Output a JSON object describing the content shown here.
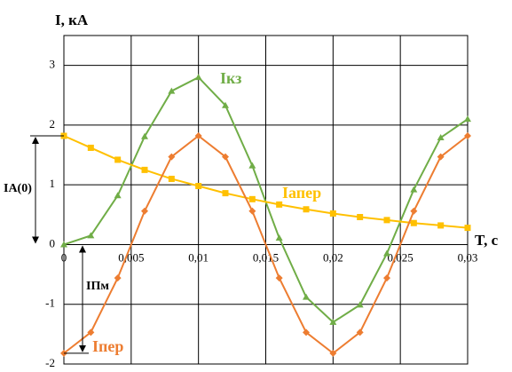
{
  "chart_data": {
    "type": "line",
    "ylabel": "I, кА",
    "xlabel": "T, с",
    "x": [
      0,
      0.002,
      0.004,
      0.006,
      0.008,
      0.01,
      0.012,
      0.014,
      0.016,
      0.018,
      0.02,
      0.022,
      0.024,
      0.026,
      0.028,
      0.03
    ],
    "series": [
      {
        "name": "Iкз",
        "color": "#70ad47",
        "marker": "triangle",
        "values": [
          0,
          0.15,
          0.82,
          1.81,
          2.57,
          2.8,
          2.33,
          1.32,
          0.11,
          -0.88,
          -1.3,
          -1.01,
          -0.15,
          0.92,
          1.79,
          2.1
        ]
      },
      {
        "name": "Iапер",
        "color": "#ffc000",
        "marker": "square",
        "values": [
          1.82,
          1.62,
          1.42,
          1.25,
          1.1,
          0.98,
          0.86,
          0.76,
          0.67,
          0.59,
          0.52,
          0.46,
          0.41,
          0.36,
          0.32,
          0.28
        ]
      },
      {
        "name": "Iпер",
        "color": "#ed7d31",
        "marker": "diamond",
        "values": [
          -1.82,
          -1.47,
          -0.56,
          0.56,
          1.47,
          1.82,
          1.47,
          0.56,
          -0.56,
          -1.47,
          -1.82,
          -1.47,
          -0.56,
          0.56,
          1.47,
          1.82
        ]
      }
    ],
    "xlim": [
      0,
      0.03
    ],
    "xticks": [
      0,
      {
        "value": 0.005,
        "label": "0,005"
      },
      {
        "value": 0.01,
        "label": "0,01"
      },
      {
        "value": 0.015,
        "label": "0,015"
      },
      {
        "value": 0.02,
        "label": "0,02"
      },
      {
        "value": 0.025,
        "label": "0,025"
      },
      {
        "value": 0.03,
        "label": "0,03"
      }
    ],
    "ylim": [
      -2,
      3.5
    ],
    "yticks": [
      -2,
      -1,
      0,
      1,
      2,
      3
    ],
    "grid": true,
    "annotations": [
      "IA(0)",
      "IПм"
    ]
  }
}
